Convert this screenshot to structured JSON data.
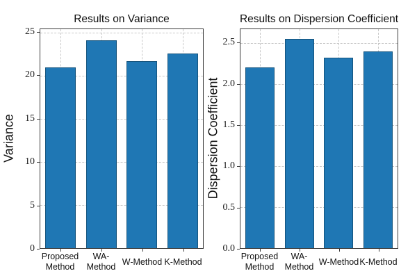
{
  "figure": {
    "background": "#ffffff"
  },
  "colors": {
    "bar_fill": "#1f77b4",
    "bar_edge": "#14537d",
    "grid": "#c7c7c7",
    "spine": "#3a3a3a",
    "text": "#111111"
  },
  "chart_data": [
    {
      "type": "bar",
      "title": "Results on Variance",
      "ylabel": "Variance",
      "xlabel": "",
      "categories": [
        "Proposed\nMethod",
        "WA-\nMethod",
        "W-Method",
        "K-Method"
      ],
      "values": [
        21.0,
        24.1,
        21.7,
        22.6
      ],
      "yticks": [
        0,
        5,
        10,
        15,
        20,
        25
      ],
      "ytick_labels": [
        "0",
        "5",
        "10",
        "15",
        "20",
        "25"
      ],
      "ylim": [
        0,
        25.4
      ],
      "grid": "dashed, horizontal and vertical at bar centers",
      "legend": "none",
      "bar_color": "#1f77b4"
    },
    {
      "type": "bar",
      "title": "Results on Dispersion Coefficient",
      "ylabel": "Dispersion Coefficient",
      "xlabel": "",
      "categories": [
        "Proposed\nMethod",
        "WA-\nMethod",
        "W-Method",
        "K-Method"
      ],
      "values": [
        2.2,
        2.55,
        2.32,
        2.4
      ],
      "yticks": [
        0,
        0.5,
        1.0,
        1.5,
        2.0,
        2.5
      ],
      "ytick_labels": [
        "0.0",
        "0.5",
        "1.0",
        "1.5",
        "2.0",
        "2.5"
      ],
      "ylim": [
        0,
        2.67
      ],
      "grid": "dashed, horizontal and vertical at bar centers",
      "legend": "none",
      "bar_color": "#1f77b4"
    }
  ]
}
